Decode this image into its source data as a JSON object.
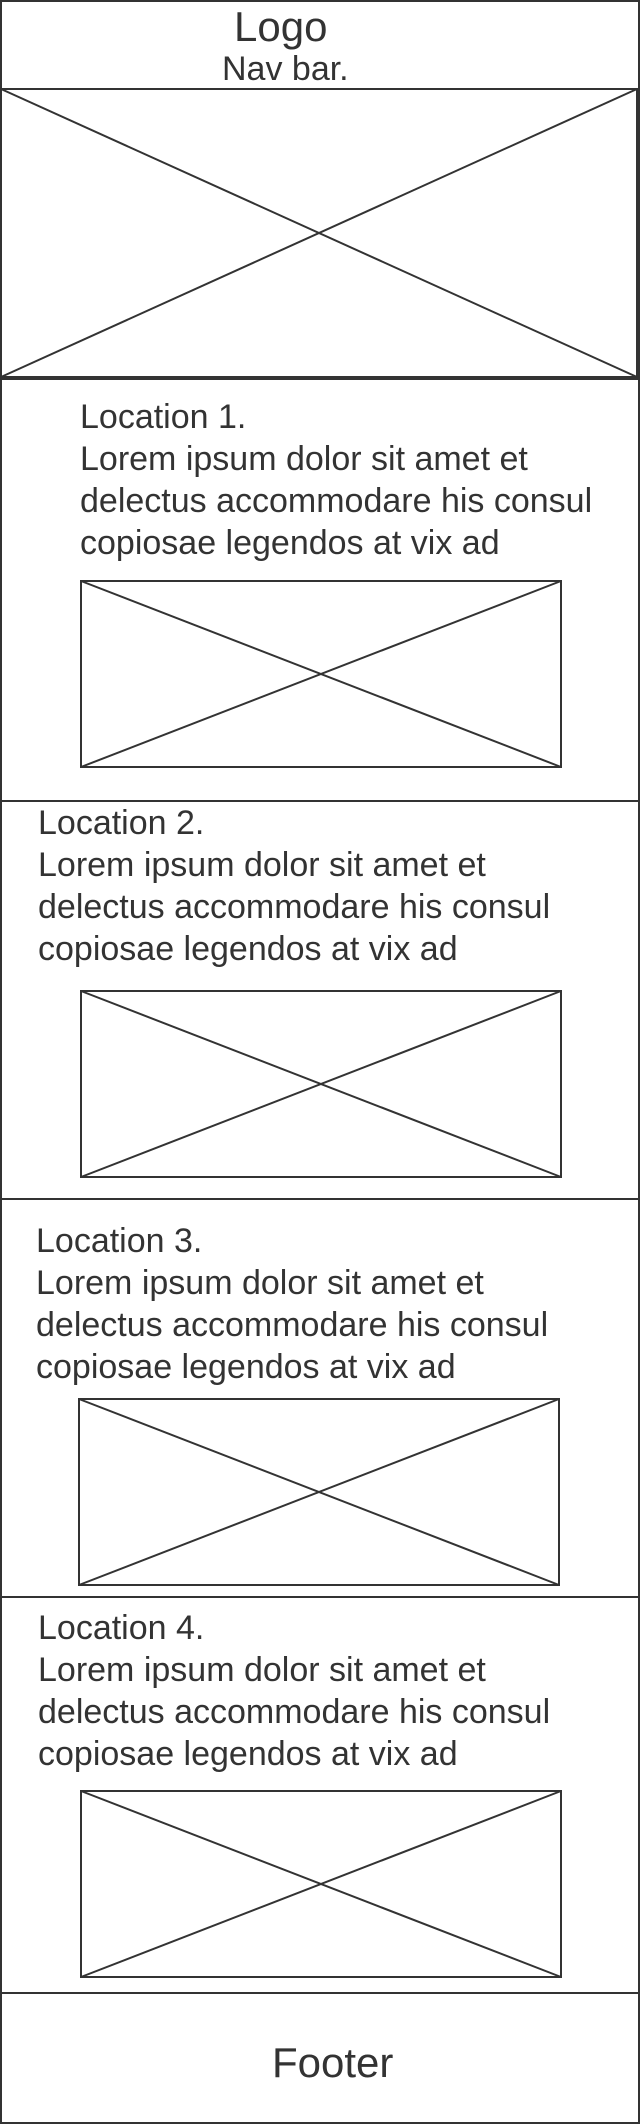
{
  "header": {
    "logo": "Logo",
    "nav": "Nav bar."
  },
  "locations": [
    {
      "title": "Location 1.",
      "lines": [
        "Lorem ipsum dolor sit amet et",
        "delectus accommodare his consul",
        "copiosae legendos at vix ad"
      ]
    },
    {
      "title": "Location 2.",
      "lines": [
        "Lorem ipsum dolor sit amet et",
        "delectus accommodare his consul",
        "copiosae legendos at vix ad"
      ]
    },
    {
      "title": "Location 3.",
      "lines": [
        "Lorem ipsum dolor sit amet et",
        "delectus accommodare his consul",
        "copiosae legendos at vix ad"
      ]
    },
    {
      "title": "Location 4.",
      "lines": [
        "Lorem ipsum dolor sit amet et",
        "delectus accommodare his consul",
        "copiosae legendos at vix ad"
      ]
    }
  ],
  "footer": {
    "label": "Footer"
  },
  "colors": {
    "stroke": "#333333",
    "background": "#ffffff"
  }
}
